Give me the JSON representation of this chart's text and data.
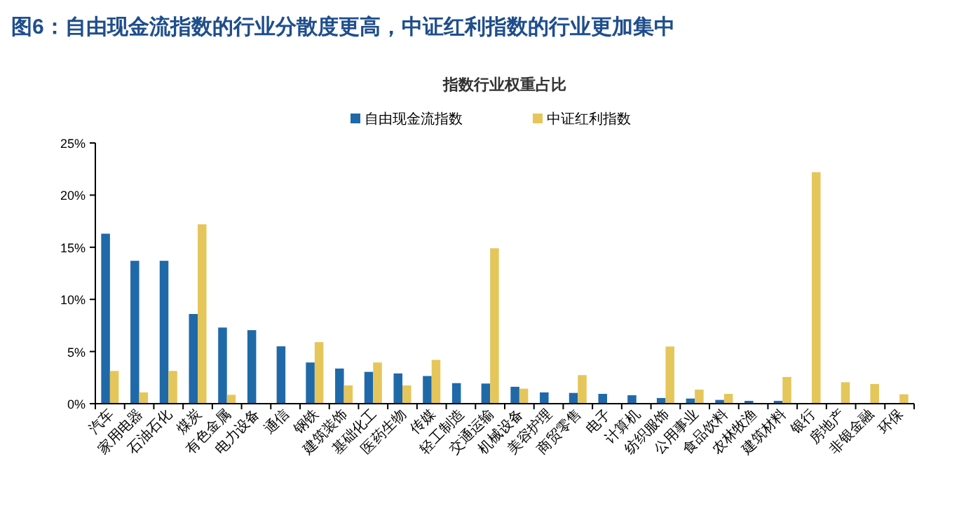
{
  "chart_data": {
    "type": "bar",
    "title": "图6：自由现金流指数的行业分散度更高，中证红利指数的行业更加集中",
    "subtitle": "指数行业权重占比",
    "categories": [
      "汽车",
      "家用电器",
      "石油石化",
      "煤炭",
      "有色金属",
      "电力设备",
      "通信",
      "钢铁",
      "建筑装饰",
      "基础化工",
      "医药生物",
      "传媒",
      "轻工制造",
      "交通运输",
      "机械设备",
      "美容护理",
      "商贸零售",
      "电子",
      "计算机",
      "纺织服饰",
      "公用事业",
      "食品饮料",
      "农林牧渔",
      "建筑材料",
      "银行",
      "房地产",
      "非银金融",
      "环保"
    ],
    "series": [
      {
        "name": "自由现金流指数",
        "color": "#1f69a8",
        "values": [
          16.3,
          13.7,
          13.7,
          8.6,
          7.3,
          7.05,
          5.5,
          3.95,
          3.37,
          3.05,
          2.9,
          2.65,
          1.97,
          1.93,
          1.62,
          1.08,
          1.03,
          0.94,
          0.81,
          0.54,
          0.49,
          0.36,
          0.27,
          0.27,
          null,
          null,
          null,
          null
        ]
      },
      {
        "name": "中证红利指数",
        "color": "#e5c65a",
        "values": [
          3.14,
          1.08,
          3.14,
          17.2,
          0.85,
          null,
          null,
          5.9,
          1.75,
          3.95,
          1.75,
          4.2,
          null,
          14.9,
          1.44,
          null,
          2.74,
          null,
          null,
          5.48,
          1.35,
          0.94,
          null,
          2.56,
          22.2,
          2.06,
          1.89,
          0.9
        ]
      }
    ],
    "ylim": [
      0,
      25
    ],
    "yticks": [
      {
        "value": 0,
        "label": "0%"
      },
      {
        "value": 5,
        "label": "5%"
      },
      {
        "value": 10,
        "label": "10%"
      },
      {
        "value": 15,
        "label": "15%"
      },
      {
        "value": 20,
        "label": "20%"
      },
      {
        "value": 25,
        "label": "25%"
      }
    ],
    "grid": false,
    "legend": "top"
  }
}
